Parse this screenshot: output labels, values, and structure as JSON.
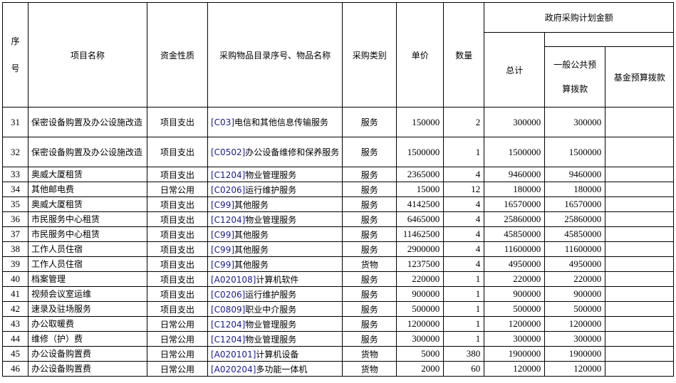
{
  "header": {
    "seq": "序号",
    "project_name": "项目名称",
    "fund_nature": "资金性质",
    "catalog": "采购物品目录序号、物品名称",
    "category": "采购类别",
    "unit_price": "单价",
    "quantity": "数量",
    "plan_amount": "政府采购计划金额",
    "total": "总计",
    "general_budget": "一般公共预算拨款",
    "fund_budget": "基金预算拨款"
  },
  "rows": [
    {
      "seq": "31",
      "name": "保密设备购置及办公设施改造",
      "nature": "项目支出",
      "code": "[C03]",
      "item": "电信和其他信息传输服务",
      "category": "服务",
      "price": "150000",
      "qty": "2",
      "total": "300000",
      "general": "300000",
      "fund": ""
    },
    {
      "seq": "32",
      "name": "保密设备购置及办公设施改造",
      "nature": "项目支出",
      "code": "[C0502]",
      "item": "办公设备维修和保养服务",
      "category": "服务",
      "price": "1500000",
      "qty": "1",
      "total": "1500000",
      "general": "1500000",
      "fund": ""
    },
    {
      "seq": "33",
      "name": "奥威大厦租赁",
      "nature": "项目支出",
      "code": "[C1204]",
      "item": "物业管理服务",
      "category": "服务",
      "price": "2365000",
      "qty": "4",
      "total": "9460000",
      "general": "9460000",
      "fund": ""
    },
    {
      "seq": "34",
      "name": "其他邮电费",
      "nature": "日常公用",
      "code": "[C0206]",
      "item": "运行维护服务",
      "category": "服务",
      "price": "15000",
      "qty": "12",
      "total": "180000",
      "general": "180000",
      "fund": ""
    },
    {
      "seq": "35",
      "name": "奥威大厦租赁",
      "nature": "项目支出",
      "code": "[C99]",
      "item": "其他服务",
      "category": "服务",
      "price": "4142500",
      "qty": "4",
      "total": "16570000",
      "general": "16570000",
      "fund": ""
    },
    {
      "seq": "36",
      "name": "市民服务中心租赁",
      "nature": "项目支出",
      "code": "[C1204]",
      "item": "物业管理服务",
      "category": "服务",
      "price": "6465000",
      "qty": "4",
      "total": "25860000",
      "general": "25860000",
      "fund": ""
    },
    {
      "seq": "37",
      "name": "市民服务中心租赁",
      "nature": "项目支出",
      "code": "[C99]",
      "item": "其他服务",
      "category": "服务",
      "price": "11462500",
      "qty": "4",
      "total": "45850000",
      "general": "45850000",
      "fund": ""
    },
    {
      "seq": "38",
      "name": "工作人员住宿",
      "nature": "项目支出",
      "code": "[C99]",
      "item": "其他服务",
      "category": "服务",
      "price": "2900000",
      "qty": "4",
      "total": "11600000",
      "general": "11600000",
      "fund": ""
    },
    {
      "seq": "39",
      "name": "工作人员住宿",
      "nature": "项目支出",
      "code": "[C99]",
      "item": "其他服务",
      "category": "货物",
      "price": "1237500",
      "qty": "4",
      "total": "4950000",
      "general": "4950000",
      "fund": ""
    },
    {
      "seq": "40",
      "name": "档案管理",
      "nature": "项目支出",
      "code": "[A020108]",
      "item": "计算机软件",
      "category": "服务",
      "price": "220000",
      "qty": "1",
      "total": "220000",
      "general": "220000",
      "fund": ""
    },
    {
      "seq": "41",
      "name": "视频会议室运维",
      "nature": "项目支出",
      "code": "[C0206]",
      "item": "运行维护服务",
      "category": "服务",
      "price": "900000",
      "qty": "1",
      "total": "900000",
      "general": "900000",
      "fund": ""
    },
    {
      "seq": "42",
      "name": "速录及驻场服务",
      "nature": "项目支出",
      "code": "[C0809]",
      "item": "职业中介服务",
      "category": "服务",
      "price": "500000",
      "qty": "1",
      "total": "500000",
      "general": "500000",
      "fund": ""
    },
    {
      "seq": "43",
      "name": "办公取暖费",
      "nature": "日常公用",
      "code": "[C1204]",
      "item": "物业管理服务",
      "category": "服务",
      "price": "1200000",
      "qty": "1",
      "total": "1200000",
      "general": "1200000",
      "fund": ""
    },
    {
      "seq": "44",
      "name": "维修（护）费",
      "nature": "日常公用",
      "code": "[C1204]",
      "item": "物业管理服务",
      "category": "服务",
      "price": "300000",
      "qty": "1",
      "total": "300000",
      "general": "300000",
      "fund": ""
    },
    {
      "seq": "45",
      "name": "办公设备购置费",
      "nature": "日常公用",
      "code": "[A020101]",
      "item": "计算机设备",
      "category": "货物",
      "price": "5000",
      "qty": "380",
      "total": "1900000",
      "general": "1900000",
      "fund": ""
    },
    {
      "seq": "46",
      "name": "办公设备购置费",
      "nature": "日常公用",
      "code": "[A020204]",
      "item": "多功能一体机",
      "category": "货物",
      "price": "2000",
      "qty": "60",
      "total": "120000",
      "general": "120000",
      "fund": ""
    }
  ]
}
